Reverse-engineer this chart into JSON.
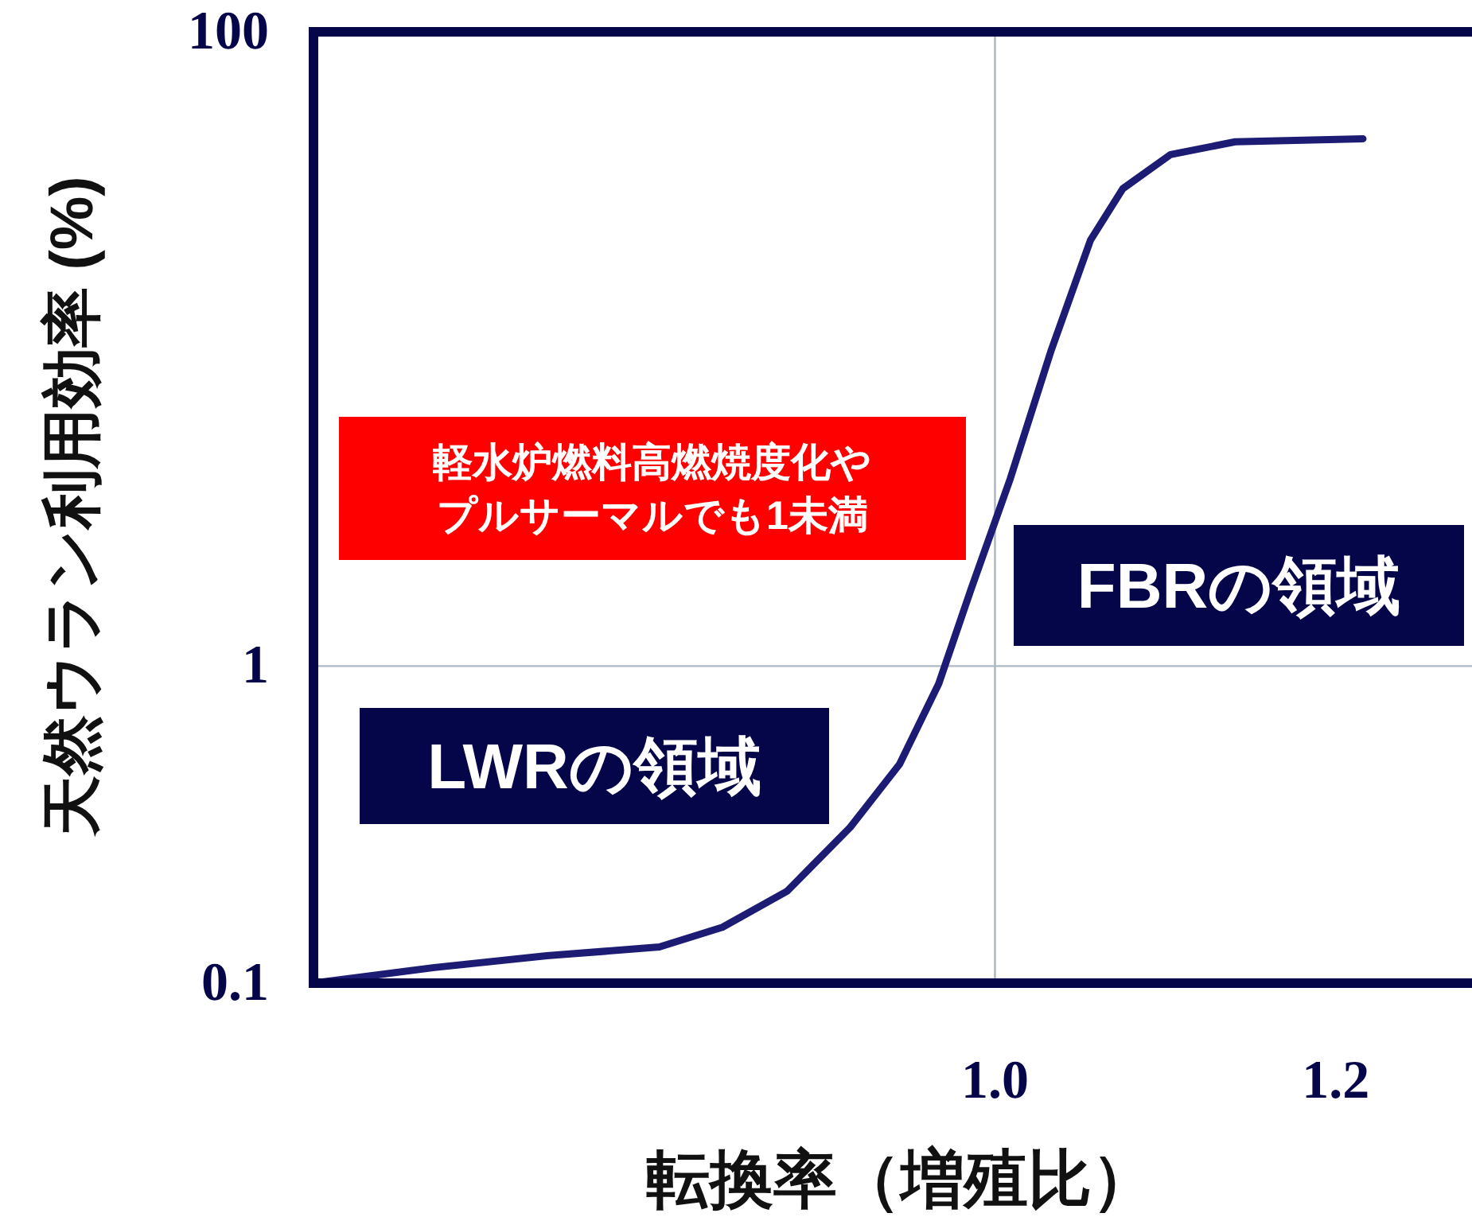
{
  "chart_data": {
    "type": "line",
    "xlabel": "転換率（増殖比）",
    "ylabel": "天然ウラン利用効率 (%)",
    "log": "y",
    "xlim": [
      0.6,
      1.28
    ],
    "ylim": [
      0.1,
      100
    ],
    "xticks": [
      {
        "value": 1.0,
        "label": "1.0"
      },
      {
        "value": 1.2,
        "label": "1.2"
      }
    ],
    "yticks": [
      0.1,
      1,
      100
    ],
    "grid": false,
    "marker": "none",
    "line_style": "solid",
    "ref_lines": [
      {
        "axis": "x",
        "value": 1.0,
        "color": "#a9b4c2"
      },
      {
        "axis": "y",
        "value": 1,
        "color": "#b0bac6"
      }
    ],
    "series": [
      {
        "color": "#1c1c74",
        "x": [
          0.6,
          0.671,
          0.737,
          0.803,
          0.84,
          0.878,
          0.915,
          0.944,
          0.967,
          0.986,
          1.009,
          1.033,
          1.056,
          1.075,
          1.103,
          1.141,
          1.216
        ],
        "values": [
          0.1,
          0.112,
          0.122,
          0.13,
          0.15,
          0.195,
          0.31,
          0.49,
          0.88,
          1.75,
          3.9,
          9.9,
          22,
          32,
          41,
          45,
          46
        ]
      }
    ],
    "annotations": [
      "軽水炉燃料高燃焼度化やプルサーマルでも1未満",
      "FBRの領域",
      "LWRの領域"
    ]
  }
}
